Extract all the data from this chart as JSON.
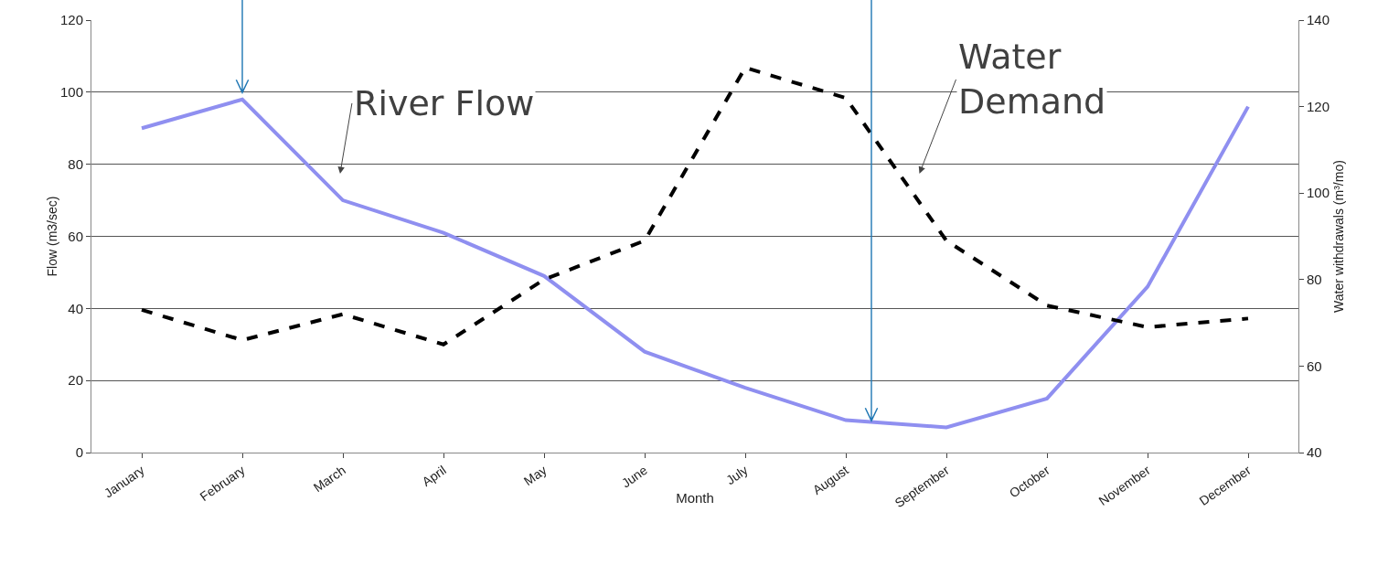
{
  "chart_data": {
    "type": "line",
    "xlabel": "Month",
    "ylabel": "Flow (m3/sec)",
    "y2label": "Water withdrawals (m³/mo)",
    "categories": [
      "January",
      "February",
      "March",
      "April",
      "May",
      "June",
      "July",
      "August",
      "September",
      "October",
      "November",
      "December"
    ],
    "series": [
      {
        "name": "River Flow",
        "color": "#8f8ff0",
        "line_style": "solid",
        "values": [
          90,
          98,
          70,
          61,
          49,
          28,
          18,
          9,
          7,
          15,
          46,
          96
        ]
      },
      {
        "name": "Water Demand",
        "color": "#000000",
        "line_style": "dashed",
        "axis": "y2",
        "values": [
          73,
          66,
          72,
          65,
          80,
          89,
          129,
          122,
          89,
          74,
          69,
          71
        ]
      }
    ],
    "ylim": [
      0,
      120
    ],
    "yticks": [
      0,
      20,
      40,
      60,
      80,
      100,
      120
    ],
    "y2lim": [
      40,
      140
    ],
    "y2ticks": [
      40,
      60,
      80,
      100,
      120,
      140
    ],
    "grid": "y",
    "legend": false,
    "marker": "none"
  }
}
